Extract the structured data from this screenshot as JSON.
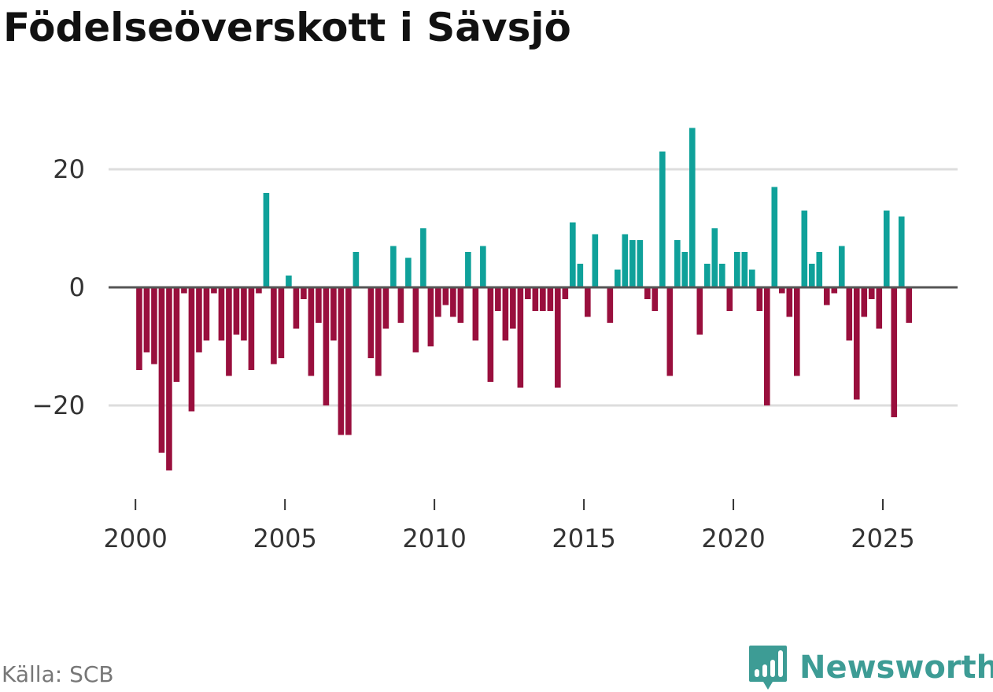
{
  "title": "Födelseöverskott i Sävsjö",
  "source": "Källa: SCB",
  "brand": "Newsworthy",
  "icons": {
    "brand_logo": "chart-bubble-icon"
  },
  "colors": {
    "positive": "#0fa19a",
    "negative": "#990f3d",
    "zero_line": "#555555",
    "grid": "#dddddd",
    "brand": "#3d9c95"
  },
  "chart_data": {
    "type": "bar",
    "title": "Födelseöverskott i Sävsjö",
    "xlabel": "",
    "ylabel": "",
    "frequency": "monthly",
    "period_start": "2000-01",
    "interval_months": 3,
    "xlim": [
      1999.1,
      2027.5
    ],
    "ylim": [
      -34,
      30
    ],
    "yticks": [
      20,
      0,
      -20
    ],
    "ytick_labels": [
      "20",
      "0",
      "−20"
    ],
    "xticks": [
      2000,
      2005,
      2010,
      2015,
      2020,
      2025
    ],
    "xtick_labels": [
      "2000",
      "2005",
      "2010",
      "2015",
      "2020",
      "2025"
    ],
    "values": [
      -14,
      -11,
      -13,
      -28,
      -31,
      -16,
      -1,
      -21,
      -11,
      -9,
      -1,
      -9,
      -15,
      -8,
      -9,
      -14,
      -1,
      16,
      -13,
      -12,
      2,
      -7,
      -2,
      -15,
      -6,
      -20,
      -9,
      -25,
      -25,
      6,
      0,
      -12,
      -15,
      -7,
      7,
      -6,
      5,
      -11,
      10,
      -10,
      -5,
      -3,
      -5,
      -6,
      6,
      -9,
      7,
      -16,
      -4,
      -9,
      -7,
      -17,
      -2,
      -4,
      -4,
      -4,
      -17,
      -2,
      11,
      4,
      -5,
      9,
      0,
      -6,
      3,
      9,
      8,
      8,
      -2,
      -4,
      23,
      -15,
      8,
      6,
      27,
      -8,
      4,
      10,
      4,
      -4,
      6,
      6,
      3,
      -4,
      -20,
      17,
      -1,
      -5,
      -15,
      13,
      4,
      6,
      -3,
      -1,
      7,
      -9,
      -19,
      -5,
      -2,
      -7,
      13,
      -22,
      12,
      -6
    ]
  }
}
